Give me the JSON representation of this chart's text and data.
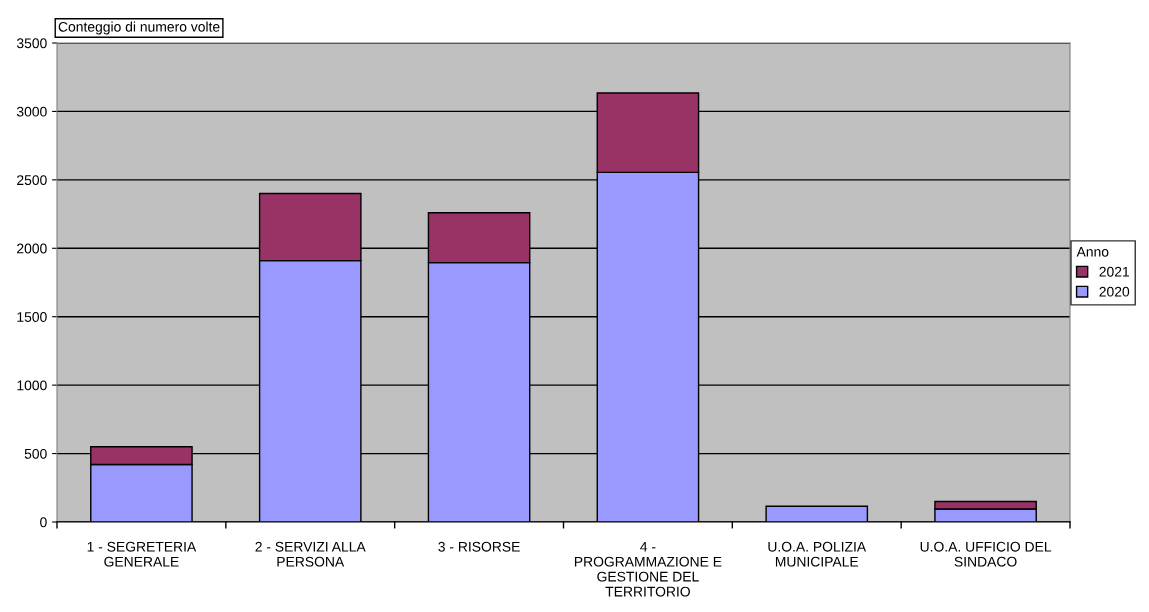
{
  "chart_data": {
    "type": "bar",
    "stacked": true,
    "categories": [
      "1 - SEGRETERIA\nGENERALE",
      "2 - SERVIZI ALLA\nPERSONA",
      "3 - RISORSE",
      "4 -\nPROGRAMMAZIONE E\nGESTIONE DEL\nTERRITORIO",
      "U.O.A. POLIZIA\nMUNICIPALE",
      "U.O.A. UFFICIO DEL\nSINDACO"
    ],
    "series": [
      {
        "name": "2020",
        "color": "#9999ff",
        "values": [
          420,
          1910,
          1895,
          2555,
          115,
          95
        ]
      },
      {
        "name": "2021",
        "color": "#993366",
        "values": [
          130,
          490,
          365,
          580,
          null,
          55
        ]
      }
    ],
    "ylim": [
      0,
      3500
    ],
    "yticks": [
      0,
      500,
      1000,
      1500,
      2000,
      2500,
      3000,
      3500
    ],
    "grid": "y",
    "legend": "right",
    "legend_title": "Anno",
    "annotations": [
      "Conteggio di numero volte"
    ]
  }
}
